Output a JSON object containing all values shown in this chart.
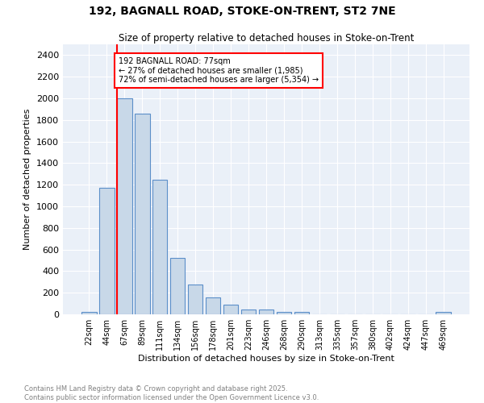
{
  "title_line1": "192, BAGNALL ROAD, STOKE-ON-TRENT, ST2 7NE",
  "title_line2": "Size of property relative to detached houses in Stoke-on-Trent",
  "xlabel": "Distribution of detached houses by size in Stoke-on-Trent",
  "ylabel": "Number of detached properties",
  "bar_labels": [
    "22sqm",
    "44sqm",
    "67sqm",
    "89sqm",
    "111sqm",
    "134sqm",
    "156sqm",
    "178sqm",
    "201sqm",
    "223sqm",
    "246sqm",
    "268sqm",
    "290sqm",
    "313sqm",
    "335sqm",
    "357sqm",
    "380sqm",
    "402sqm",
    "424sqm",
    "447sqm",
    "469sqm"
  ],
  "bar_values": [
    25,
    1170,
    2000,
    1860,
    1245,
    520,
    275,
    155,
    90,
    45,
    45,
    20,
    20,
    0,
    0,
    0,
    0,
    0,
    0,
    0,
    20
  ],
  "bar_color": "#c8d8e8",
  "bar_edge_color": "#5b8fc9",
  "vline_x": 1.575,
  "vline_color": "red",
  "annotation_text": "192 BAGNALL ROAD: 77sqm\n← 27% of detached houses are smaller (1,985)\n72% of semi-detached houses are larger (5,354) →",
  "annotation_box_color": "white",
  "annotation_box_edge": "red",
  "ylim": [
    0,
    2500
  ],
  "yticks": [
    0,
    200,
    400,
    600,
    800,
    1000,
    1200,
    1400,
    1600,
    1800,
    2000,
    2200,
    2400
  ],
  "background_color": "#eaf0f8",
  "footer_line1": "Contains HM Land Registry data © Crown copyright and database right 2025.",
  "footer_line2": "Contains public sector information licensed under the Open Government Licence v3.0."
}
